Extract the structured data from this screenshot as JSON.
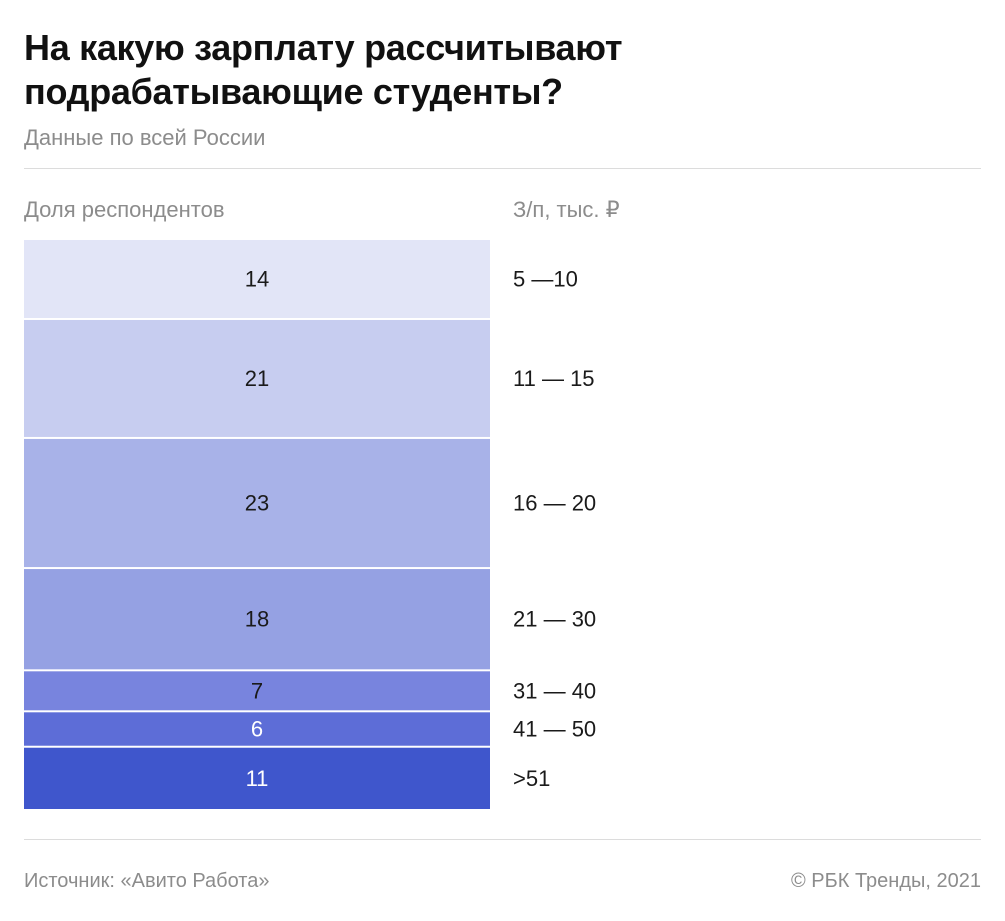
{
  "chart_data": {
    "type": "bar",
    "subtype": "stacked-column-100",
    "title": "На какую зарплату рассчитывают подрабатывающие студенты?",
    "subtitle": "Данные по всей России",
    "left_header": "Доля респондентов",
    "right_header": "З/п, тыс. ₽",
    "segments": [
      {
        "value": 14,
        "label": "14",
        "range": "5 —10",
        "color": "#e2e5f7"
      },
      {
        "value": 21,
        "label": "21",
        "range": "11 — 15",
        "color": "#c7cdf0"
      },
      {
        "value": 23,
        "label": "23",
        "range": "16 — 20",
        "color": "#a8b2e8"
      },
      {
        "value": 18,
        "label": "18",
        "range": "21 — 30",
        "color": "#95a1e3"
      },
      {
        "value": 7,
        "label": "7",
        "range": "31 — 40",
        "color": "#7884de"
      },
      {
        "value": 6,
        "label": "6",
        "range": "41 — 50",
        "color": "#5d6dd7"
      },
      {
        "value": 11,
        "label": "11",
        "range": ">51",
        "color": "#3f56cc"
      }
    ]
  },
  "footer": {
    "source": "Источник: «Авито Работа»",
    "copyright": "© РБК Тренды, 2021"
  },
  "colors": {
    "label_dark": "#1a1a1a",
    "label_light": "#ffffff"
  }
}
